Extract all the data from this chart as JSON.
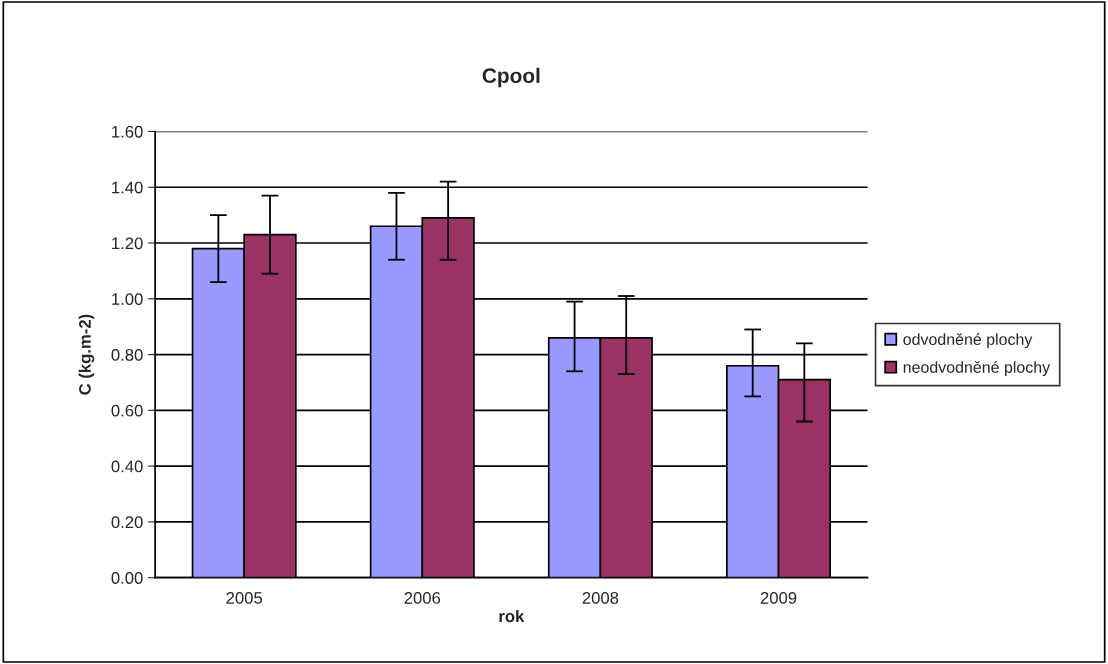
{
  "chart_data": {
    "type": "bar",
    "title": "Cpool",
    "xlabel": "rok",
    "ylabel": "C (kg.m-2)",
    "categories": [
      "2005",
      "2006",
      "2008",
      "2009"
    ],
    "series": [
      {
        "name": "odvodněné plochy",
        "color": "#9999ff",
        "values": [
          1.18,
          1.26,
          0.86,
          0.76
        ],
        "errors": [
          [
            1.06,
            1.3
          ],
          [
            1.14,
            1.38
          ],
          [
            0.74,
            0.99
          ],
          [
            0.65,
            0.89
          ]
        ]
      },
      {
        "name": "neodvodněné plochy",
        "color": "#993366",
        "values": [
          1.23,
          1.29,
          0.86,
          0.71
        ],
        "errors": [
          [
            1.09,
            1.37
          ],
          [
            1.14,
            1.42
          ],
          [
            0.73,
            1.01
          ],
          [
            0.56,
            0.84
          ]
        ]
      }
    ],
    "ylim": [
      0,
      1.6
    ],
    "yticks": [
      {
        "value": 0,
        "label": "0.00"
      },
      {
        "value": 0.2,
        "label": "0.20"
      },
      {
        "value": 0.4,
        "label": "0.40"
      },
      {
        "value": 0.6,
        "label": "0.60"
      },
      {
        "value": 0.8,
        "label": "0.80"
      },
      {
        "value": 1.0,
        "label": "1.00"
      },
      {
        "value": 1.2,
        "label": "1.20"
      },
      {
        "value": 1.4,
        "label": "1.40"
      },
      {
        "value": 1.6,
        "label": "1.60"
      }
    ],
    "grid": "y",
    "legend": "right"
  }
}
